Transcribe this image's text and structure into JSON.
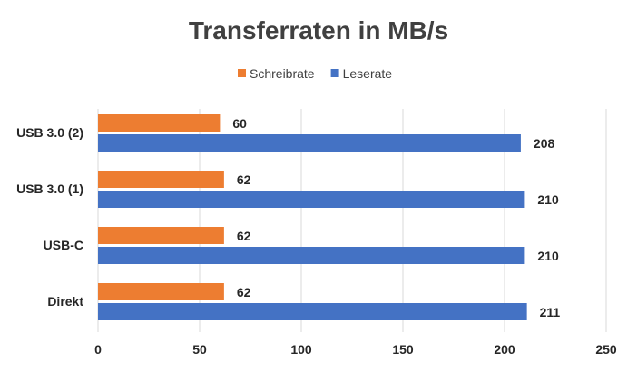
{
  "chart_data": {
    "type": "bar",
    "orientation": "horizontal",
    "title": "Transferraten in MB/s",
    "categories": [
      "USB 3.0 (2)",
      "USB 3.0 (1)",
      "USB-C",
      "Direkt"
    ],
    "series": [
      {
        "name": "Schreibrate",
        "values": [
          60,
          62,
          62,
          62
        ],
        "color": "#ED7D31"
      },
      {
        "name": "Leserate",
        "values": [
          208,
          210,
          210,
          211
        ],
        "color": "#4472C4"
      }
    ],
    "xlim": [
      0,
      250
    ],
    "xticks": [
      "0",
      "50",
      "100",
      "150",
      "200",
      "250"
    ],
    "grid": true,
    "legend_position": "top"
  }
}
